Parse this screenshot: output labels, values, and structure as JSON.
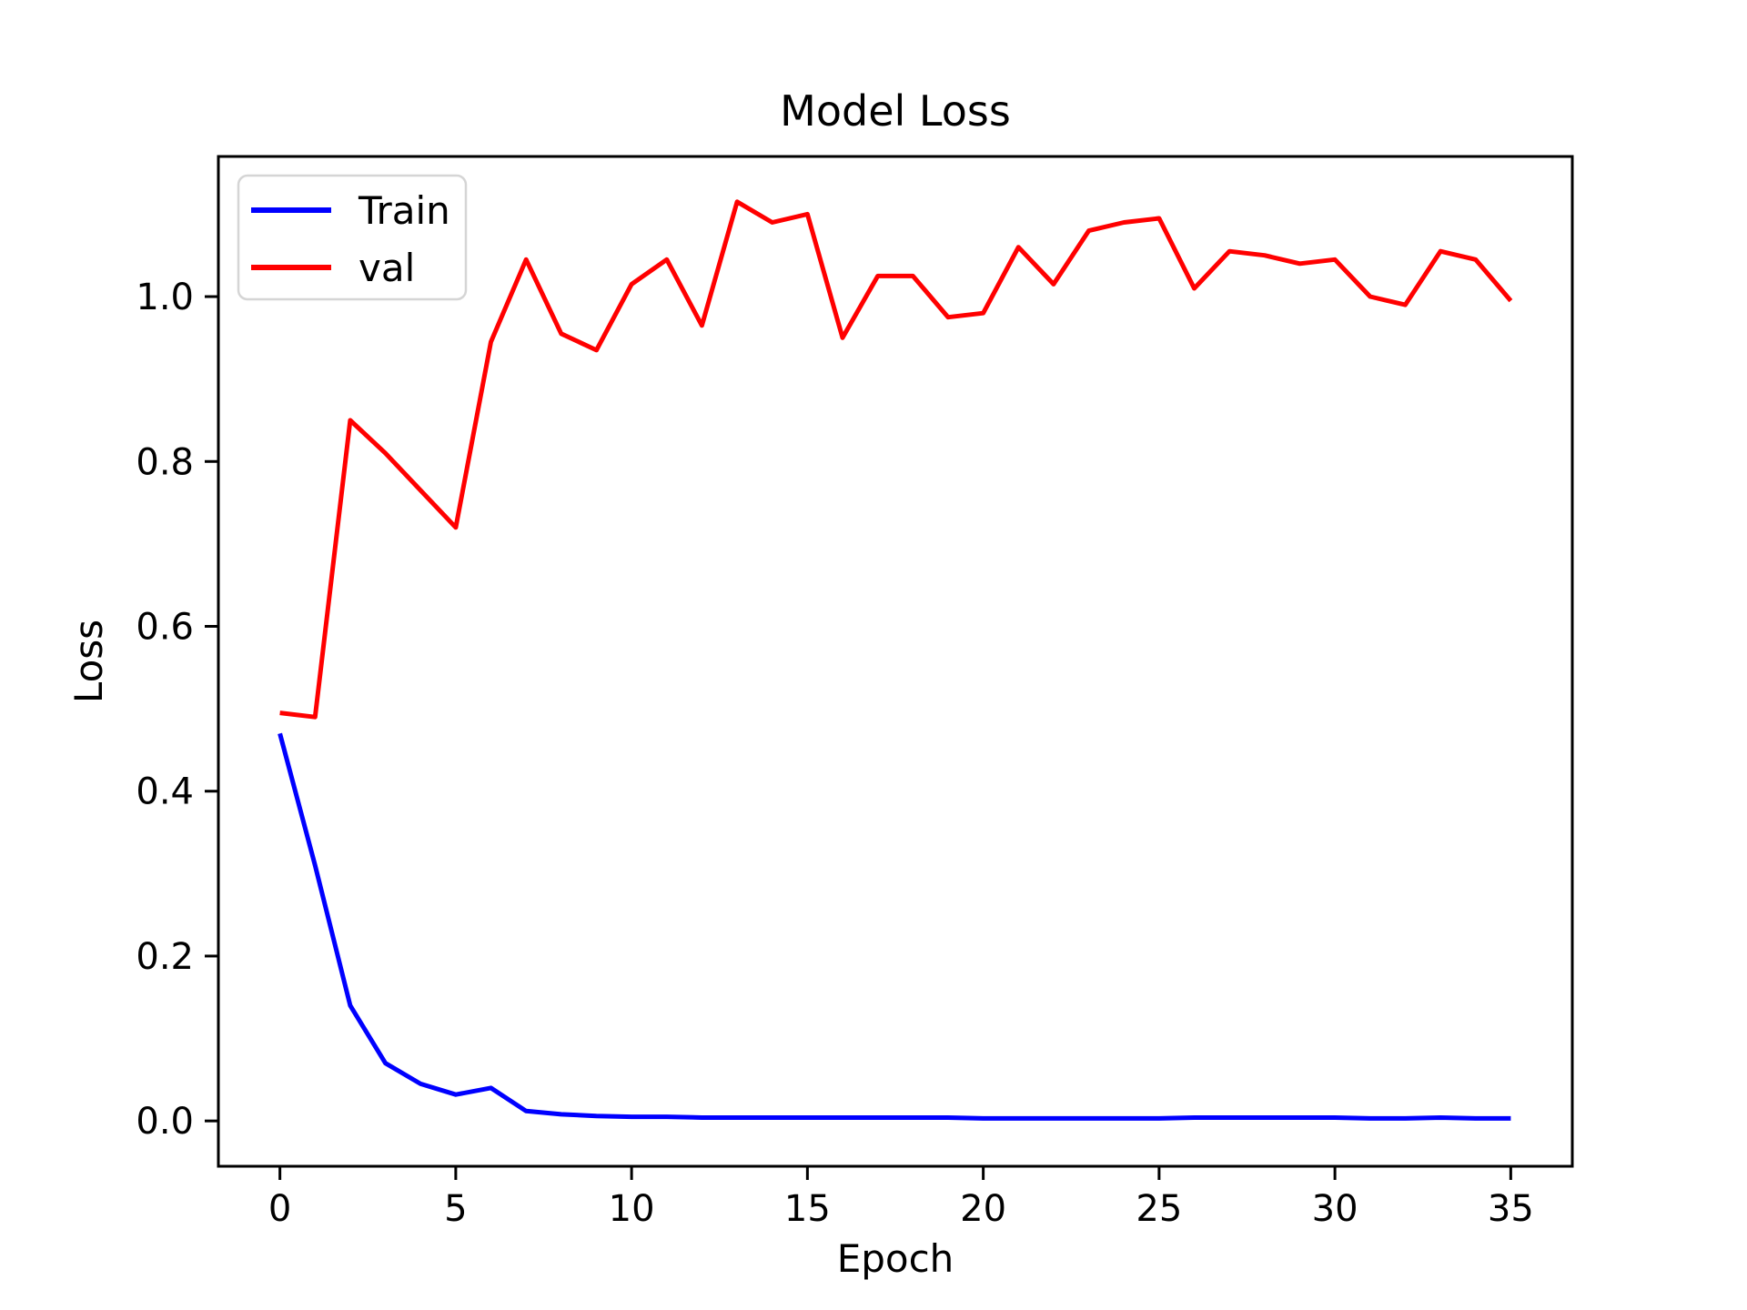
{
  "chart_data": {
    "type": "line",
    "title": "Model Loss",
    "xlabel": "Epoch",
    "ylabel": "Loss",
    "x": [
      0,
      1,
      2,
      3,
      4,
      5,
      6,
      7,
      8,
      9,
      10,
      11,
      12,
      13,
      14,
      15,
      16,
      17,
      18,
      19,
      20,
      21,
      22,
      23,
      24,
      25,
      26,
      27,
      28,
      29,
      30,
      31,
      32,
      33,
      34,
      35
    ],
    "series": [
      {
        "name": "Train",
        "color": "#0000ff",
        "values": [
          0.47,
          0.31,
          0.14,
          0.07,
          0.045,
          0.032,
          0.04,
          0.012,
          0.008,
          0.006,
          0.005,
          0.005,
          0.004,
          0.004,
          0.004,
          0.004,
          0.004,
          0.004,
          0.004,
          0.004,
          0.003,
          0.003,
          0.003,
          0.003,
          0.003,
          0.003,
          0.004,
          0.004,
          0.004,
          0.004,
          0.004,
          0.003,
          0.003,
          0.004,
          0.003,
          0.003
        ]
      },
      {
        "name": "val",
        "color": "#ff0000",
        "values": [
          0.495,
          0.49,
          0.85,
          0.81,
          0.765,
          0.72,
          0.945,
          1.045,
          0.955,
          0.935,
          1.015,
          1.045,
          0.965,
          1.115,
          1.09,
          1.1,
          0.95,
          1.025,
          1.025,
          0.975,
          0.98,
          1.06,
          1.015,
          1.08,
          1.09,
          1.095,
          1.01,
          1.055,
          1.05,
          1.04,
          1.045,
          1.0,
          0.99,
          1.055,
          1.045,
          0.995
        ]
      }
    ],
    "x_ticks": [
      0,
      5,
      10,
      15,
      20,
      25,
      30,
      35
    ],
    "x_tick_labels": [
      "0",
      "5",
      "10",
      "15",
      "20",
      "25",
      "30",
      "35"
    ],
    "y_ticks": [
      0.0,
      0.2,
      0.4,
      0.6,
      0.8,
      1.0
    ],
    "y_tick_labels": [
      "0.0",
      "0.2",
      "0.4",
      "0.6",
      "0.8",
      "1.0"
    ],
    "xlim": [
      -1.75,
      36.75
    ],
    "ylim": [
      -0.055,
      1.17
    ],
    "grid": false,
    "legend_position": "upper left",
    "background_color": "#ffffff",
    "axes_color": "#000000",
    "legend_border_color": "#d5d5d5"
  }
}
